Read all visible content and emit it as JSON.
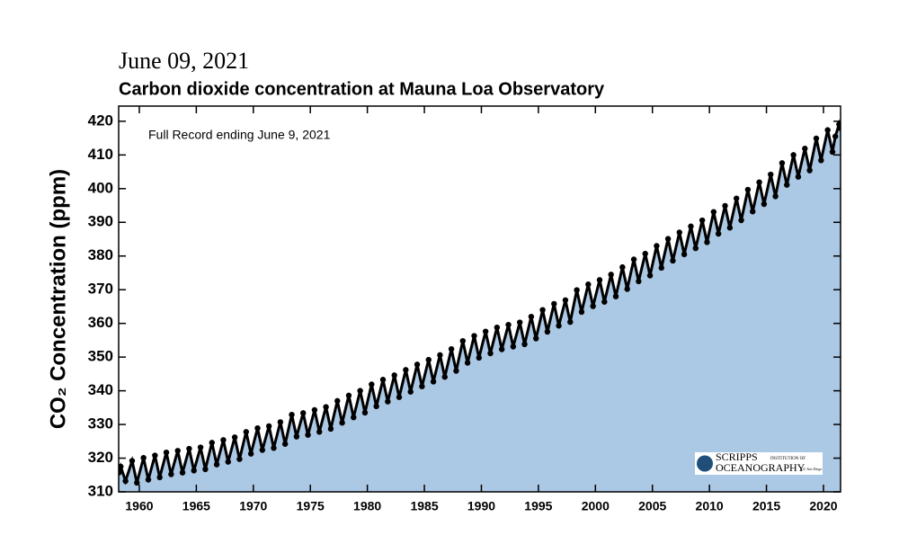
{
  "chart_data": {
    "type": "area",
    "date": "June 09, 2021",
    "title": "Carbon dioxide concentration at Mauna Loa Observatory",
    "annotation": "Full Record ending June 9, 2021",
    "ylabel": "CO₂ Concentration (ppm)",
    "logo": {
      "line1": "SCRIPPS",
      "line1b": "INSTITUTION OF",
      "line2": "OCEANOGRAPHY",
      "line2b": "UC San Diego"
    },
    "fill_color": "#abc8e5",
    "point_color": "#000000",
    "xlim": [
      1958.19,
      2021.5
    ],
    "ylim": [
      310,
      424.5
    ],
    "xticks": [
      1960,
      1965,
      1970,
      1975,
      1980,
      1985,
      1990,
      1995,
      2000,
      2005,
      2010,
      2015,
      2020
    ],
    "yticks": [
      310,
      320,
      330,
      340,
      350,
      360,
      370,
      380,
      390,
      400,
      410,
      420
    ],
    "x": [
      1958.21,
      1958.37,
      1958.79,
      1959.37,
      1959.79,
      1960.37,
      1960.79,
      1961.37,
      1961.79,
      1962.37,
      1962.79,
      1963.37,
      1963.79,
      1964.37,
      1964.79,
      1965.37,
      1965.79,
      1966.37,
      1966.79,
      1967.37,
      1967.79,
      1968.37,
      1968.79,
      1969.37,
      1969.79,
      1970.37,
      1970.79,
      1971.37,
      1971.79,
      1972.37,
      1972.79,
      1973.37,
      1973.79,
      1974.37,
      1974.79,
      1975.37,
      1975.79,
      1976.37,
      1976.79,
      1977.37,
      1977.79,
      1978.37,
      1978.79,
      1979.37,
      1979.79,
      1980.37,
      1980.79,
      1981.37,
      1981.79,
      1982.37,
      1982.79,
      1983.37,
      1983.79,
      1984.37,
      1984.79,
      1985.37,
      1985.79,
      1986.37,
      1986.79,
      1987.37,
      1987.79,
      1988.37,
      1988.79,
      1989.37,
      1989.79,
      1990.37,
      1990.79,
      1991.37,
      1991.79,
      1992.37,
      1992.79,
      1993.37,
      1993.79,
      1994.37,
      1994.79,
      1995.37,
      1995.79,
      1996.37,
      1996.79,
      1997.37,
      1997.79,
      1998.37,
      1998.79,
      1999.37,
      1999.79,
      2000.37,
      2000.79,
      2001.37,
      2001.79,
      2002.37,
      2002.79,
      2003.37,
      2003.79,
      2004.37,
      2004.79,
      2005.37,
      2005.79,
      2006.37,
      2006.79,
      2007.37,
      2007.79,
      2008.37,
      2008.79,
      2009.37,
      2009.79,
      2010.37,
      2010.79,
      2011.37,
      2011.79,
      2012.37,
      2012.79,
      2013.37,
      2013.79,
      2014.37,
      2014.79,
      2015.37,
      2015.79,
      2016.37,
      2016.79,
      2017.37,
      2017.79,
      2018.37,
      2018.79,
      2019.37,
      2019.79,
      2020.37,
      2020.79,
      2021.04,
      2021.37,
      2021.44
    ],
    "values": [
      315.7,
      317.5,
      313.2,
      319.2,
      312.7,
      320.1,
      313.6,
      320.8,
      314.3,
      321.7,
      315.2,
      322.2,
      315.7,
      322.8,
      316.3,
      323.2,
      316.7,
      324.6,
      318.1,
      325.4,
      318.9,
      326.2,
      319.7,
      327.8,
      321.3,
      328.9,
      322.4,
      329.5,
      323.0,
      330.7,
      324.2,
      332.9,
      326.4,
      333.4,
      326.9,
      334.3,
      327.8,
      335.2,
      328.7,
      337.0,
      330.5,
      338.6,
      332.1,
      340.0,
      333.5,
      341.9,
      335.4,
      343.3,
      336.8,
      344.6,
      338.1,
      346.2,
      339.7,
      347.8,
      341.3,
      349.2,
      342.7,
      350.6,
      344.1,
      352.4,
      345.9,
      354.8,
      348.3,
      356.3,
      349.8,
      357.6,
      351.1,
      358.8,
      352.3,
      359.6,
      353.1,
      360.3,
      353.8,
      362.0,
      355.5,
      364.0,
      357.5,
      365.8,
      359.3,
      366.9,
      360.4,
      369.9,
      363.4,
      371.6,
      365.1,
      372.9,
      366.4,
      374.5,
      368.0,
      376.7,
      370.2,
      379.0,
      372.5,
      380.7,
      374.2,
      383.0,
      376.5,
      385.1,
      378.6,
      387.0,
      380.5,
      388.8,
      382.3,
      390.6,
      384.1,
      393.1,
      386.6,
      394.9,
      388.4,
      397.1,
      390.6,
      399.7,
      393.2,
      401.9,
      395.4,
      404.2,
      397.7,
      407.6,
      401.1,
      410.0,
      403.5,
      411.9,
      405.4,
      414.9,
      408.4,
      417.4,
      410.9,
      415.5,
      419.1,
      418.0
    ]
  }
}
